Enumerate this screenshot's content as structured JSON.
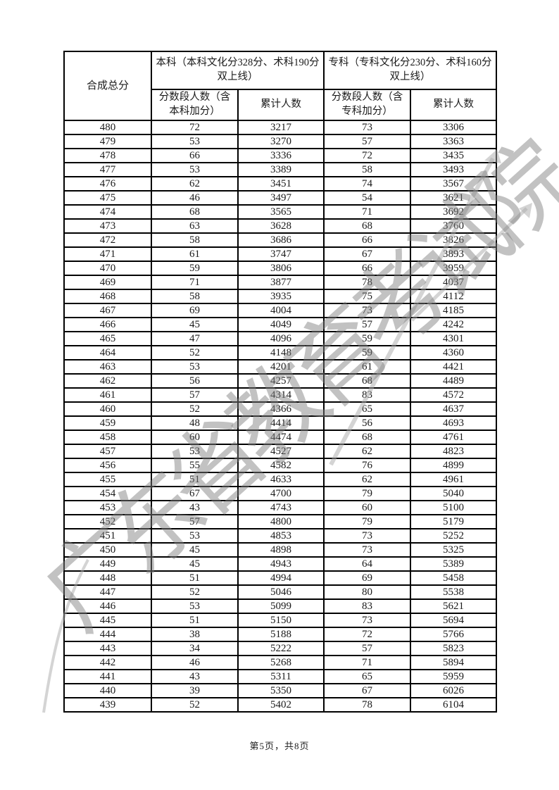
{
  "page": {
    "footer": "第5页，共8页",
    "colors": {
      "background": "#ffffff",
      "table_border": "#000000",
      "text": "#1a1a1a",
      "watermark": "#808080"
    }
  },
  "watermark": {
    "text": "广东省教育考试院"
  },
  "table": {
    "header": {
      "col_composite": "合成总分",
      "group_benke": "本科（本科文化分328分、术科190分双上线）",
      "group_zhuanke": "专科（专科文化分230分、术科160分双上线）",
      "sub_benke_segment": "分数段人数（含本科加分）",
      "sub_benke_cumulative": "累计人数",
      "sub_zhuanke_segment": "分数段人数（含专科加分）",
      "sub_zhuanke_cumulative": "累计人数"
    },
    "rows": [
      [
        480,
        72,
        3217,
        73,
        3306
      ],
      [
        479,
        53,
        3270,
        57,
        3363
      ],
      [
        478,
        66,
        3336,
        72,
        3435
      ],
      [
        477,
        53,
        3389,
        58,
        3493
      ],
      [
        476,
        62,
        3451,
        74,
        3567
      ],
      [
        475,
        46,
        3497,
        54,
        3621
      ],
      [
        474,
        68,
        3565,
        71,
        3692
      ],
      [
        473,
        63,
        3628,
        68,
        3760
      ],
      [
        472,
        58,
        3686,
        66,
        3826
      ],
      [
        471,
        61,
        3747,
        67,
        3893
      ],
      [
        470,
        59,
        3806,
        66,
        3959
      ],
      [
        469,
        71,
        3877,
        78,
        4037
      ],
      [
        468,
        58,
        3935,
        75,
        4112
      ],
      [
        467,
        69,
        4004,
        73,
        4185
      ],
      [
        466,
        45,
        4049,
        57,
        4242
      ],
      [
        465,
        47,
        4096,
        59,
        4301
      ],
      [
        464,
        52,
        4148,
        59,
        4360
      ],
      [
        463,
        53,
        4201,
        61,
        4421
      ],
      [
        462,
        56,
        4257,
        68,
        4489
      ],
      [
        461,
        57,
        4314,
        83,
        4572
      ],
      [
        460,
        52,
        4366,
        65,
        4637
      ],
      [
        459,
        48,
        4414,
        56,
        4693
      ],
      [
        458,
        60,
        4474,
        68,
        4761
      ],
      [
        457,
        53,
        4527,
        62,
        4823
      ],
      [
        456,
        55,
        4582,
        76,
        4899
      ],
      [
        455,
        51,
        4633,
        62,
        4961
      ],
      [
        454,
        67,
        4700,
        79,
        5040
      ],
      [
        453,
        43,
        4743,
        60,
        5100
      ],
      [
        452,
        57,
        4800,
        79,
        5179
      ],
      [
        451,
        53,
        4853,
        73,
        5252
      ],
      [
        450,
        45,
        4898,
        73,
        5325
      ],
      [
        449,
        45,
        4943,
        64,
        5389
      ],
      [
        448,
        51,
        4994,
        69,
        5458
      ],
      [
        447,
        52,
        5046,
        80,
        5538
      ],
      [
        446,
        53,
        5099,
        83,
        5621
      ],
      [
        445,
        51,
        5150,
        73,
        5694
      ],
      [
        444,
        38,
        5188,
        72,
        5766
      ],
      [
        443,
        34,
        5222,
        57,
        5823
      ],
      [
        442,
        46,
        5268,
        71,
        5894
      ],
      [
        441,
        43,
        5311,
        65,
        5959
      ],
      [
        440,
        39,
        5350,
        67,
        6026
      ],
      [
        439,
        52,
        5402,
        78,
        6104
      ]
    ]
  }
}
